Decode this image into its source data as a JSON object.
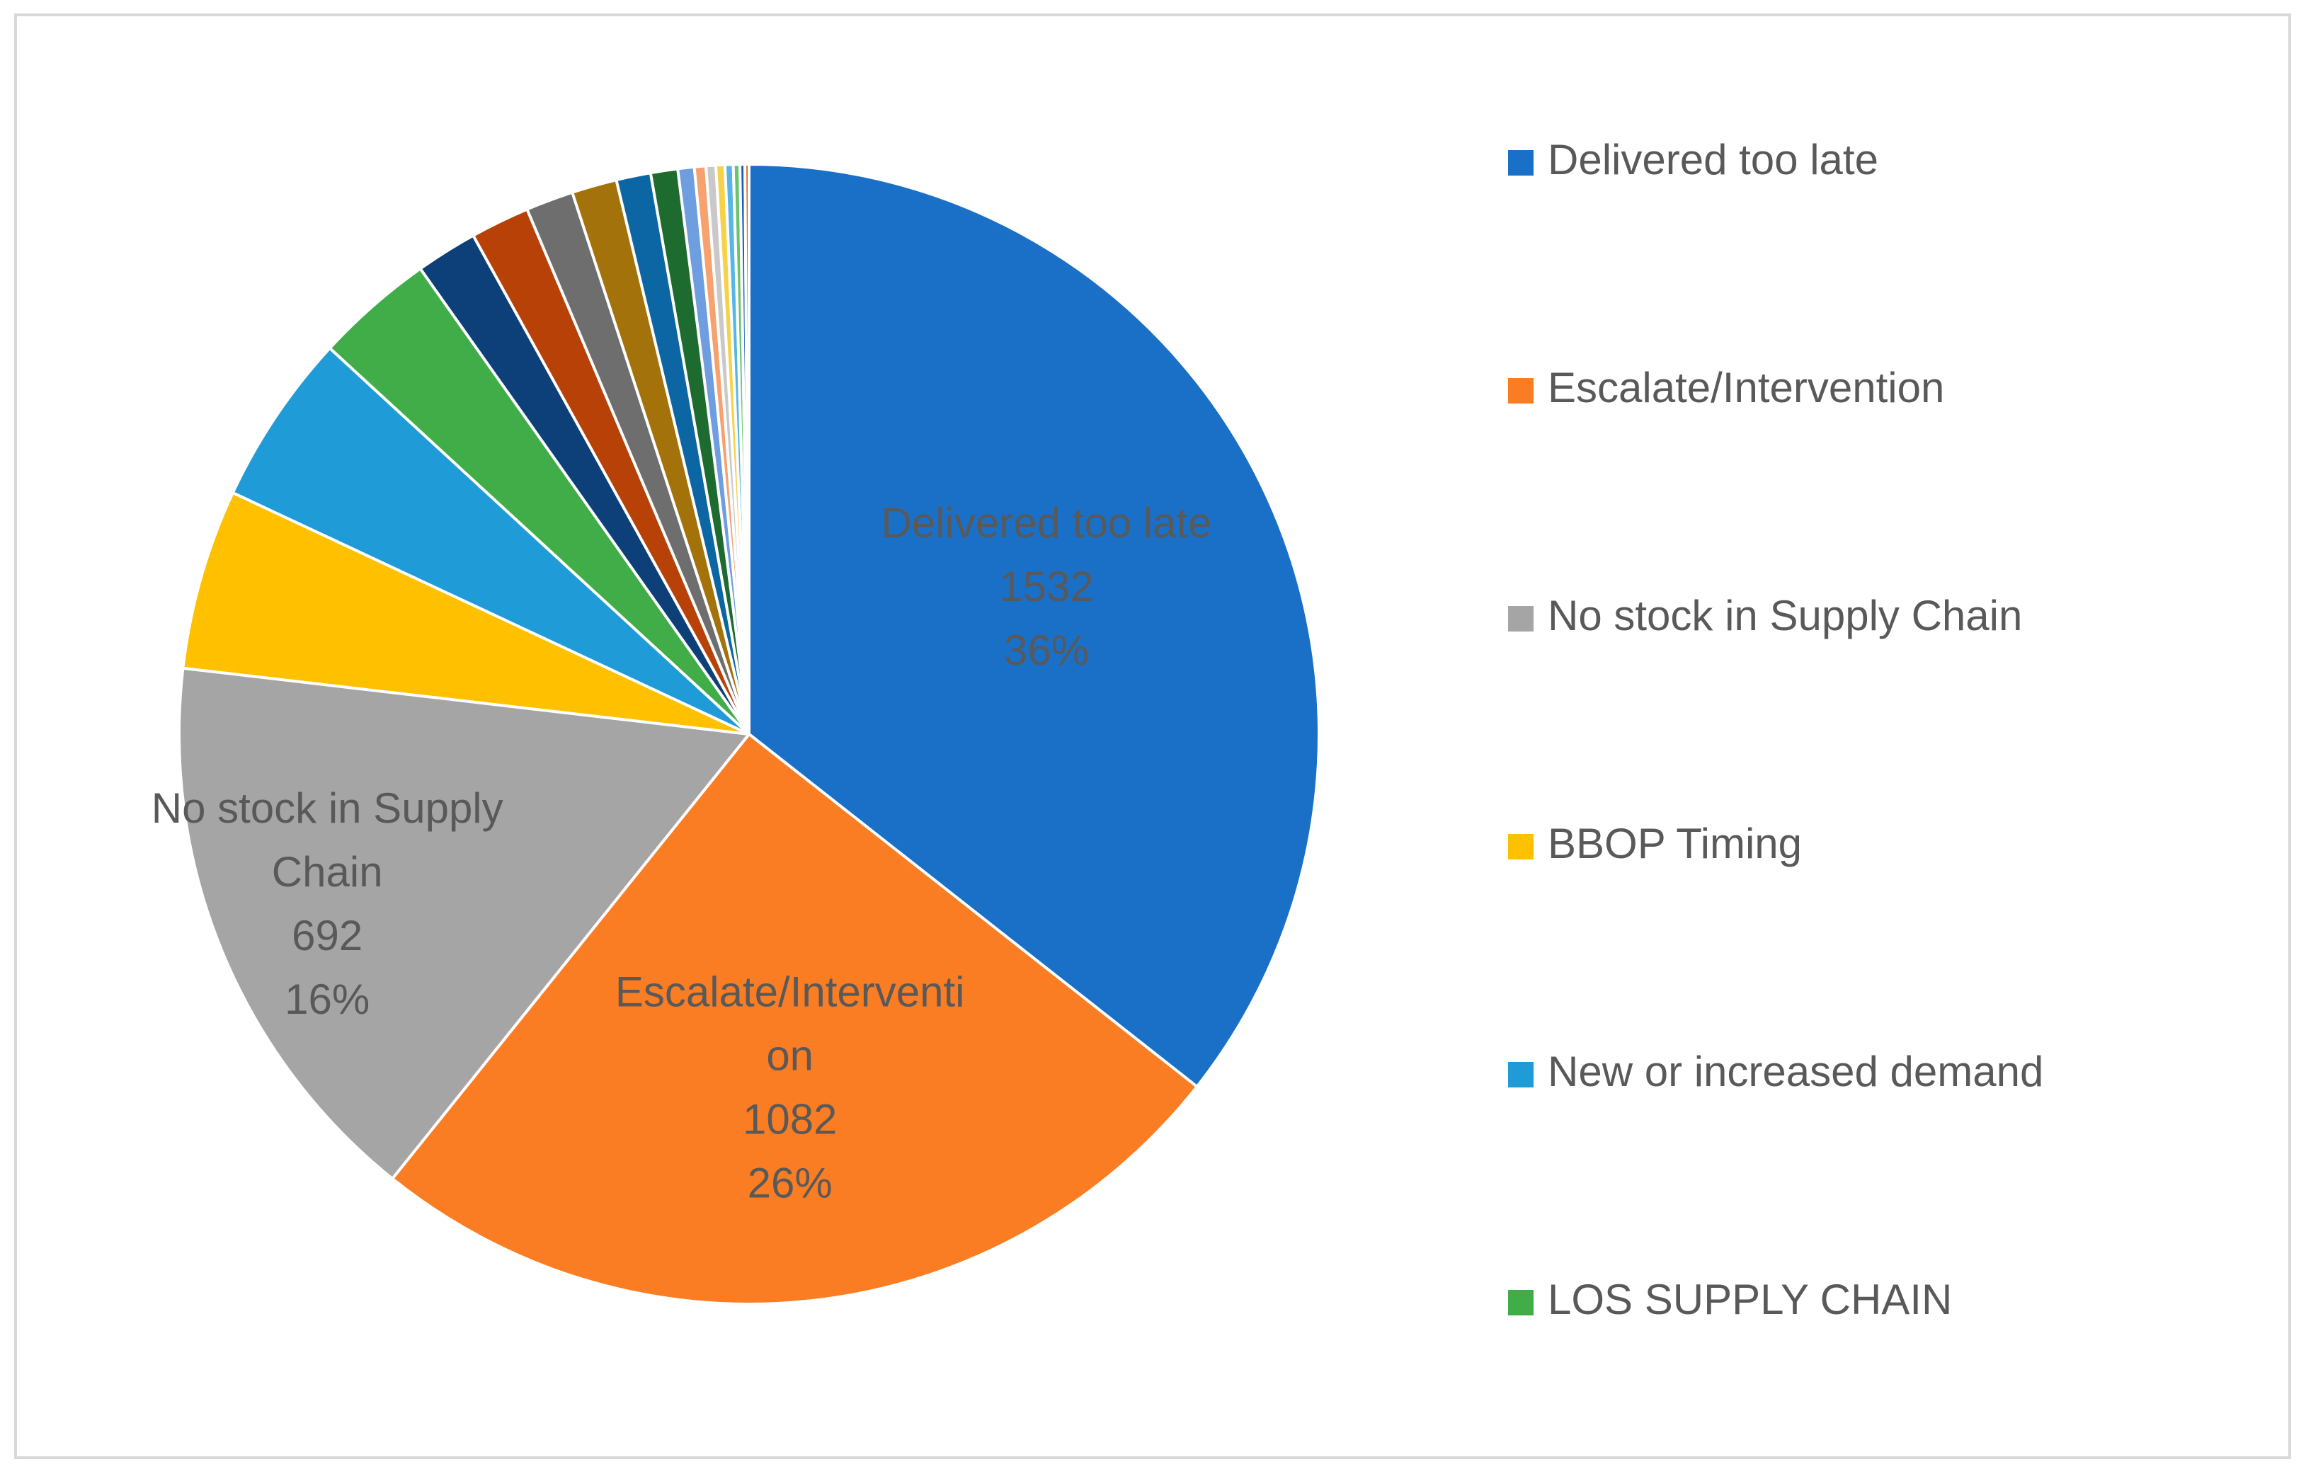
{
  "chart_data": {
    "type": "pie",
    "title": "",
    "legend_position": "right",
    "slices": [
      {
        "label": "Delivered too late",
        "value": 1532,
        "percent": "36%",
        "color": "#1A70C7",
        "legend": true,
        "data_label": [
          "Delivered too late",
          "1532",
          "36%"
        ]
      },
      {
        "label": "Escalate/Intervention",
        "value": 1082,
        "percent": "26%",
        "color": "#FA7D23",
        "legend": true,
        "data_label": [
          "Escalate/Interventi",
          "on",
          "1082",
          "26%"
        ]
      },
      {
        "label": "No stock in Supply Chain",
        "value": 692,
        "percent": "16%",
        "color": "#A5A5A5",
        "legend": true,
        "data_label": [
          "No stock in Supply",
          "Chain",
          "692",
          "16%"
        ]
      },
      {
        "label": "BBOP Timing",
        "value": 220,
        "color": "#FFC000",
        "legend": true
      },
      {
        "label": "New or increased demand",
        "value": 210,
        "color": "#1F9BD7",
        "legend": true
      },
      {
        "label": "LOS SUPPLY CHAIN",
        "value": 145,
        "color": "#40AD48",
        "legend": true
      },
      {
        "value": 75,
        "color": "#0D3F79",
        "legend": false
      },
      {
        "value": 72,
        "color": "#B74107",
        "legend": false
      },
      {
        "value": 58,
        "color": "#6E6E6E",
        "legend": false
      },
      {
        "value": 55,
        "color": "#A4720A",
        "legend": false
      },
      {
        "value": 42,
        "color": "#0C66A4",
        "legend": false
      },
      {
        "value": 33,
        "color": "#1E6B2F",
        "legend": false
      },
      {
        "value": 20,
        "color": "#6E9DE0",
        "legend": false
      },
      {
        "value": 14,
        "color": "#F7A16F",
        "legend": false
      },
      {
        "value": 12,
        "color": "#C9C9C9",
        "legend": false
      },
      {
        "value": 11,
        "color": "#F6D24A",
        "legend": false
      },
      {
        "value": 10,
        "color": "#58B5E6",
        "legend": false
      },
      {
        "value": 8,
        "color": "#6CC36F",
        "legend": false
      },
      {
        "value": 6,
        "color": "#1A5ABF",
        "legend": false
      },
      {
        "value": 5,
        "color": "#D8641C",
        "legend": false
      }
    ]
  }
}
